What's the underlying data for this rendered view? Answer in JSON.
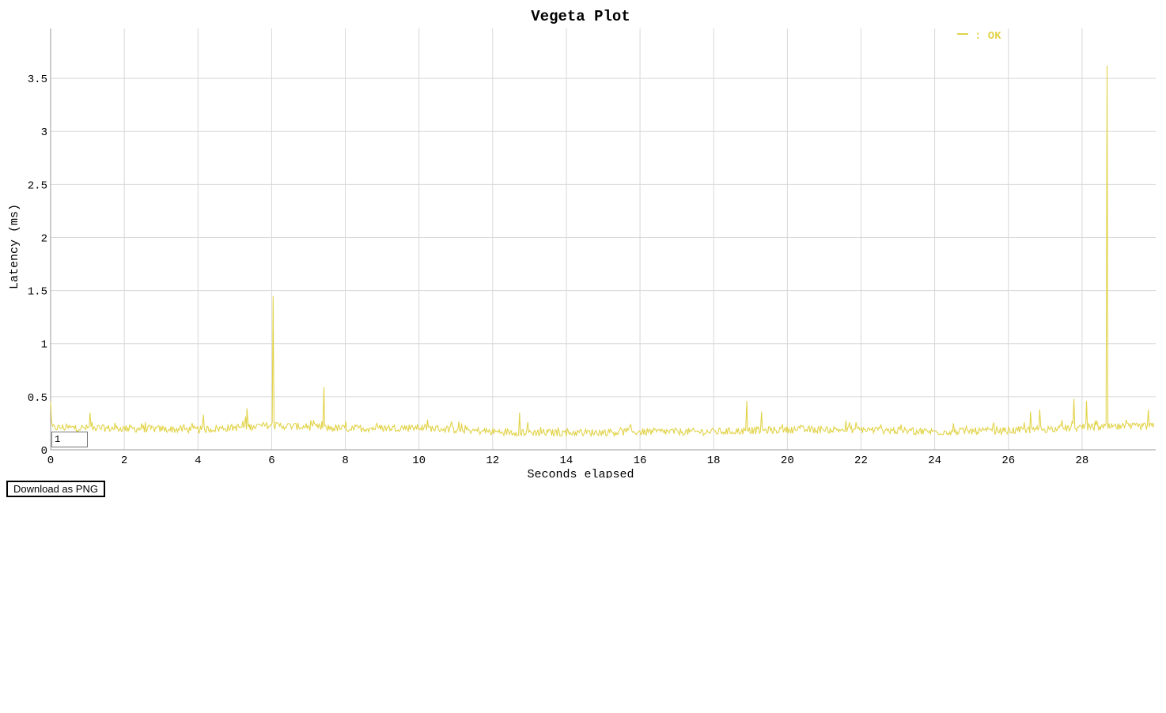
{
  "chart_data": {
    "type": "line",
    "title": "Vegeta Plot",
    "xlabel": "Seconds elapsed",
    "ylabel": "Latency (ms)",
    "xlim": [
      0,
      30
    ],
    "ylim": [
      0,
      3.97
    ],
    "xticks": [
      "0",
      "2",
      "4",
      "6",
      "8",
      "10",
      "12",
      "14",
      "16",
      "18",
      "20",
      "22",
      "24",
      "26",
      "28"
    ],
    "yticks": [
      "0",
      "0.5",
      "1",
      "1.5",
      "2",
      "2.5",
      "3",
      "3.5"
    ],
    "grid": true,
    "legend_position": "top-right",
    "series": [
      {
        "name": ": OK",
        "color": "#e2d34a",
        "baseline": {
          "x": [
            0,
            2,
            4,
            6,
            8,
            10,
            12,
            14,
            16,
            18,
            20,
            22,
            24,
            26,
            28,
            29.95
          ],
          "y": [
            0.21,
            0.2,
            0.19,
            0.23,
            0.2,
            0.21,
            0.17,
            0.16,
            0.17,
            0.17,
            0.19,
            0.19,
            0.17,
            0.18,
            0.21,
            0.22
          ]
        },
        "jitter": 0.035,
        "spikes": [
          {
            "x": 0.0,
            "y": 0.45
          },
          {
            "x": 1.07,
            "y": 0.35
          },
          {
            "x": 4.15,
            "y": 0.33
          },
          {
            "x": 5.33,
            "y": 0.39
          },
          {
            "x": 6.04,
            "y": 1.45
          },
          {
            "x": 7.42,
            "y": 0.59
          },
          {
            "x": 12.73,
            "y": 0.35
          },
          {
            "x": 18.9,
            "y": 0.46
          },
          {
            "x": 19.3,
            "y": 0.36
          },
          {
            "x": 26.6,
            "y": 0.36
          },
          {
            "x": 26.85,
            "y": 0.38
          },
          {
            "x": 27.78,
            "y": 0.48
          },
          {
            "x": 28.12,
            "y": 0.46
          },
          {
            "x": 28.68,
            "y": 3.62
          },
          {
            "x": 29.8,
            "y": 0.38
          }
        ]
      }
    ]
  },
  "controls": {
    "roller_value": "1",
    "download_label": "Download as PNG"
  }
}
